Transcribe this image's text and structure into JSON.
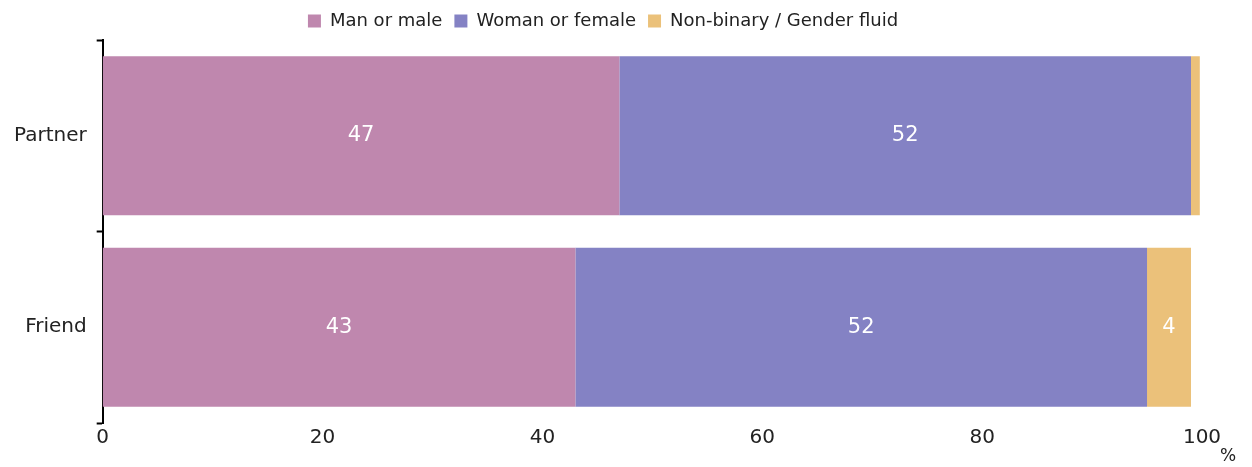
{
  "chart_data": {
    "type": "bar",
    "orientation": "horizontal",
    "stacked": true,
    "xlabel": "%",
    "categories": [
      "Partner",
      "Friend"
    ],
    "series": [
      {
        "name": "Man or male",
        "color": "#bf87ae",
        "values": [
          47,
          43
        ],
        "value_labels": [
          "47",
          "43"
        ]
      },
      {
        "name": "Woman or female",
        "color": "#8482c4",
        "values": [
          52,
          52
        ],
        "value_labels": [
          "52",
          "52"
        ]
      },
      {
        "name": "Non-binary / Gender fluid",
        "color": "#ebc17a",
        "values": [
          0.8,
          4
        ],
        "value_labels": [
          null,
          "4"
        ]
      }
    ],
    "xlim": [
      0,
      100
    ],
    "xticks": [
      0,
      20,
      40,
      60,
      80,
      100
    ],
    "grid": false,
    "legend": "top"
  }
}
